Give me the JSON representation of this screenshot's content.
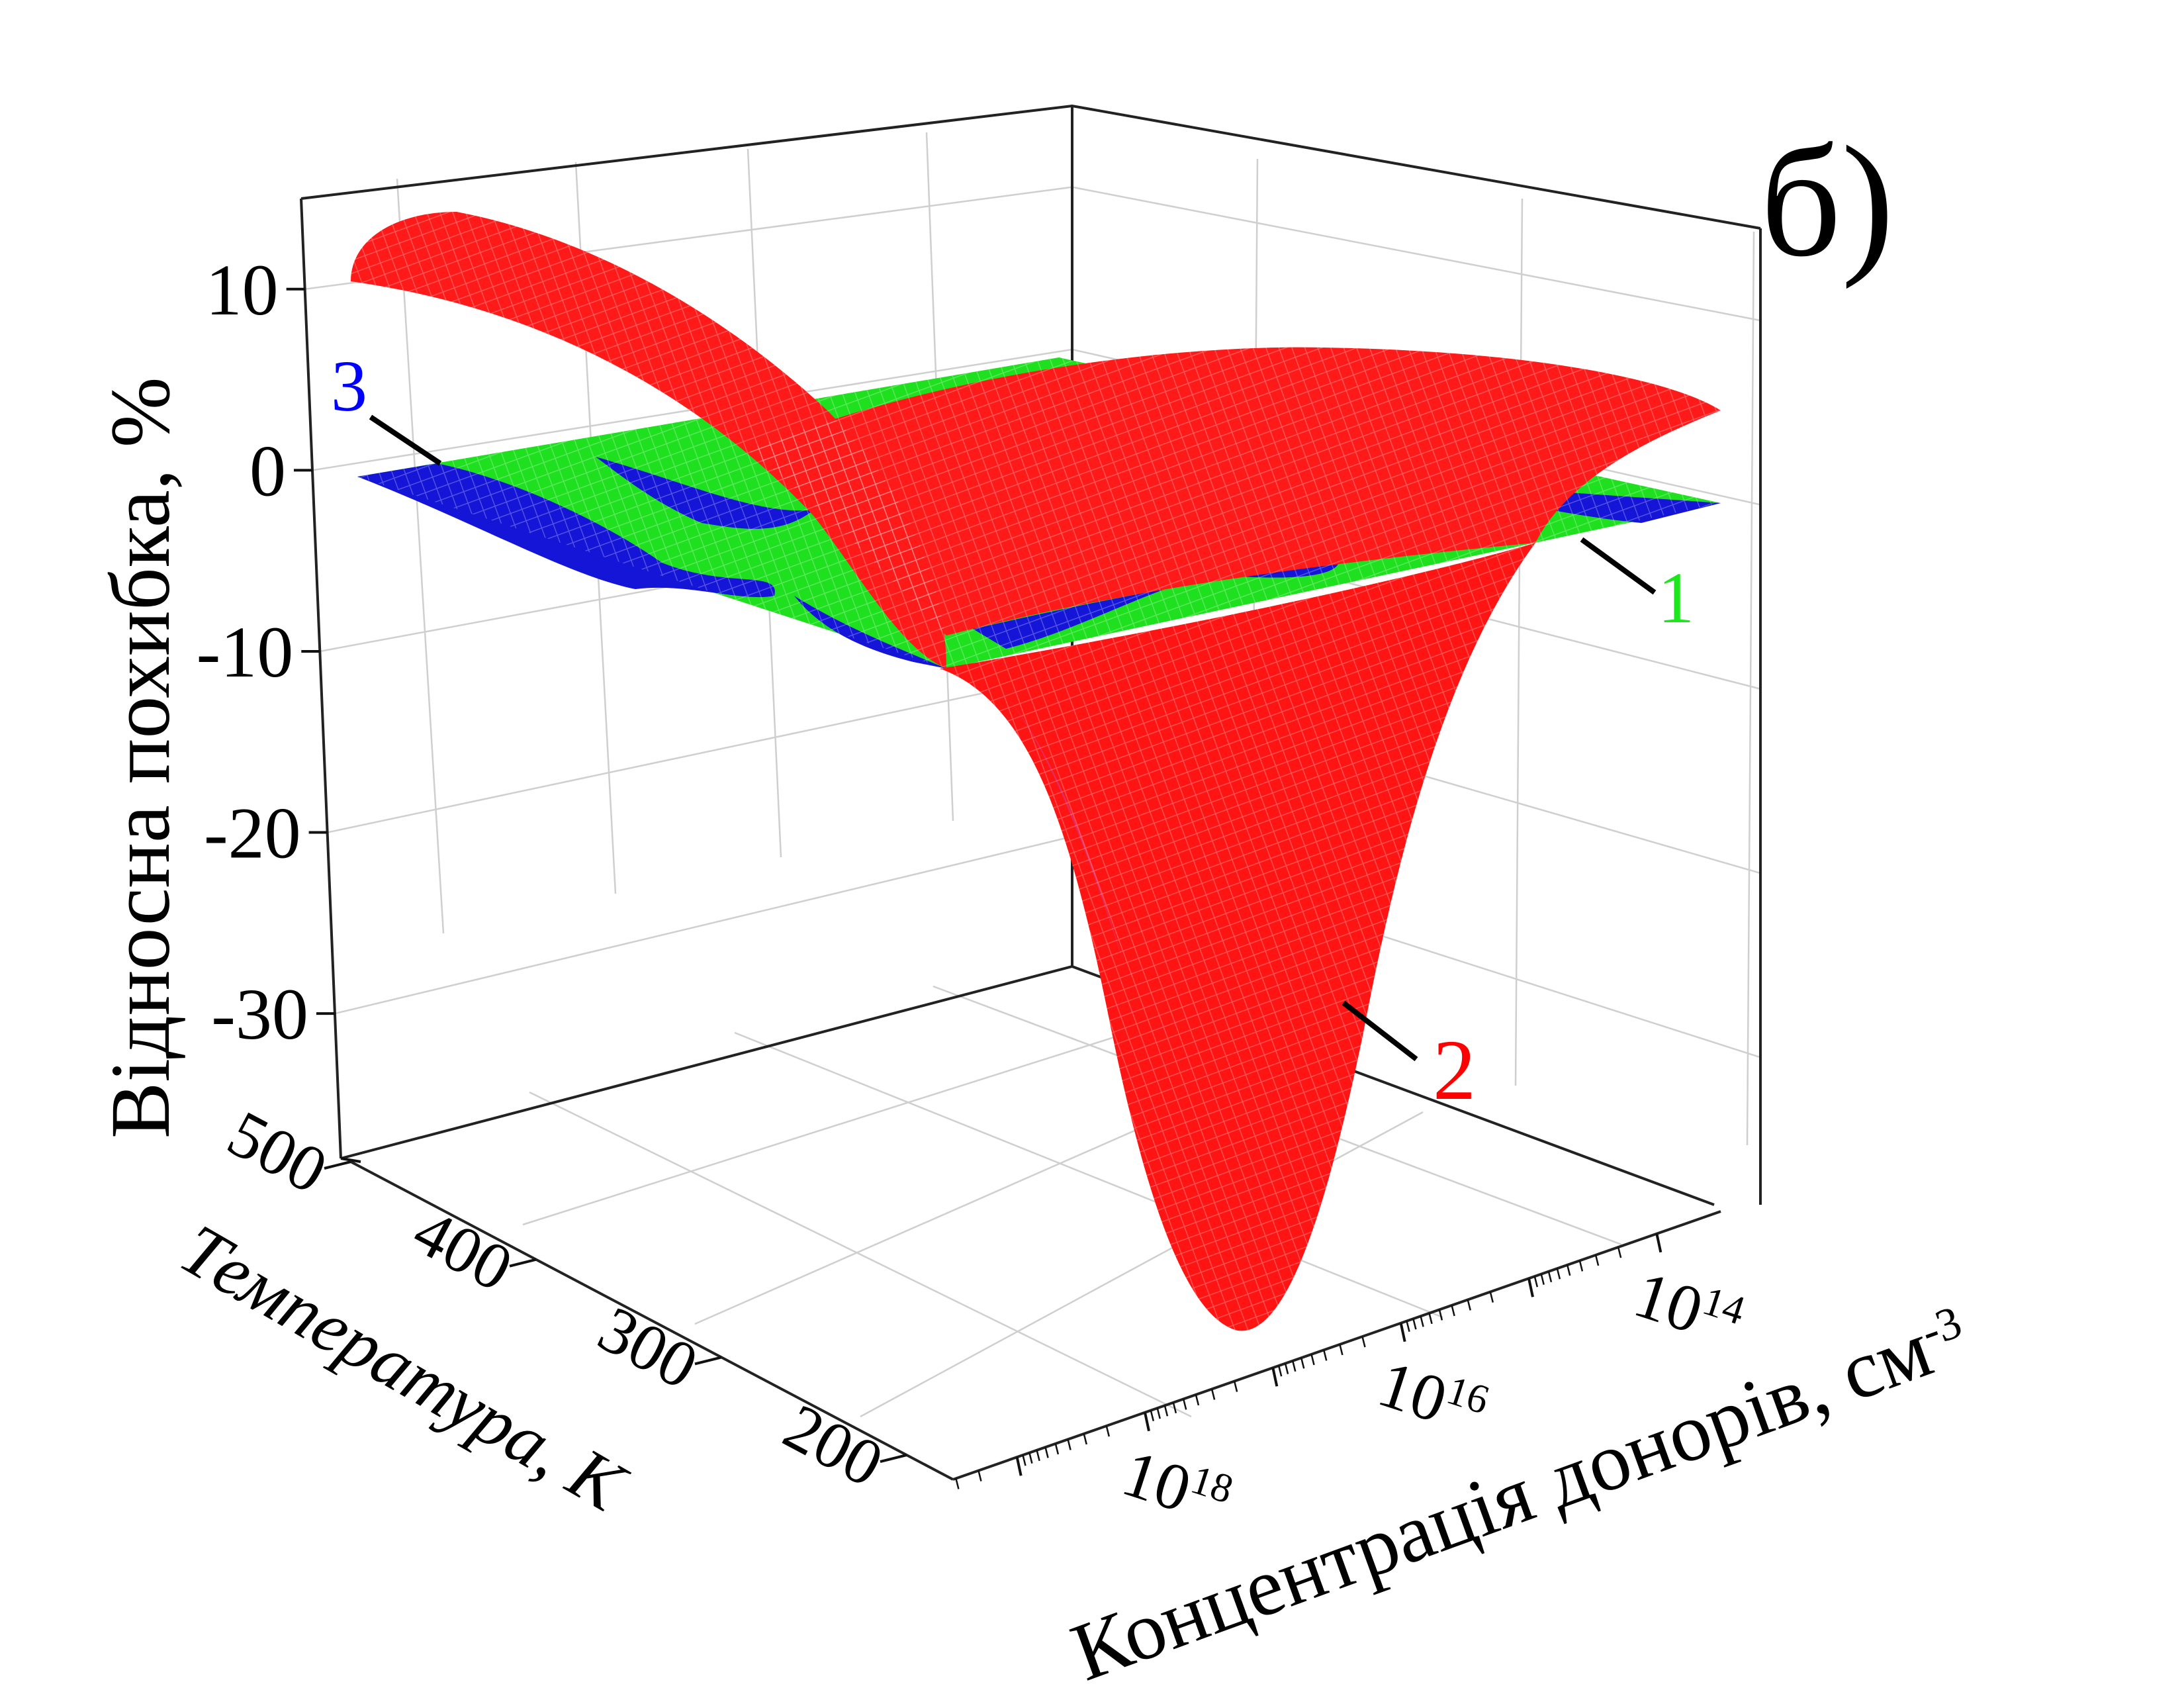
{
  "panel_label": "б)",
  "chart_data": {
    "type": "surface3d",
    "zlabel": "Відносна похибка,  %",
    "xlabel": "Температура, К",
    "ylabel": "Концентрація донорів, см",
    "ylabel_sup": "-3",
    "z_ticks": [
      "10",
      "0",
      "-10",
      "-20",
      "-30"
    ],
    "z_tick_values": [
      10,
      0,
      -10,
      -20,
      -30
    ],
    "zlim": [
      -38,
      15
    ],
    "x_ticks": [
      "500",
      "400",
      "300",
      "200"
    ],
    "x_tick_values": [
      500,
      400,
      300,
      200
    ],
    "xlim": [
      175,
      500
    ],
    "y_ticks": [
      {
        "base": "10",
        "exp": "14"
      },
      {
        "base": "10",
        "exp": "16"
      },
      {
        "base": "10",
        "exp": "18"
      }
    ],
    "y_tick_exponents": [
      14,
      16,
      18
    ],
    "ylim_log10": [
      13.5,
      19.5
    ],
    "grid": true,
    "series": [
      {
        "name": "1",
        "color": "#00ff00",
        "z_range": [
          -10,
          0
        ]
      },
      {
        "name": "2",
        "color": "#ff0000",
        "z_range": [
          -37,
          11
        ]
      },
      {
        "name": "3",
        "color": "#0000ff",
        "z_range": [
          -10,
          0
        ]
      }
    ],
    "colors": {
      "curve1": "#1ee61e",
      "curve2": "#ff0000",
      "curve3": "#0000ff"
    }
  }
}
